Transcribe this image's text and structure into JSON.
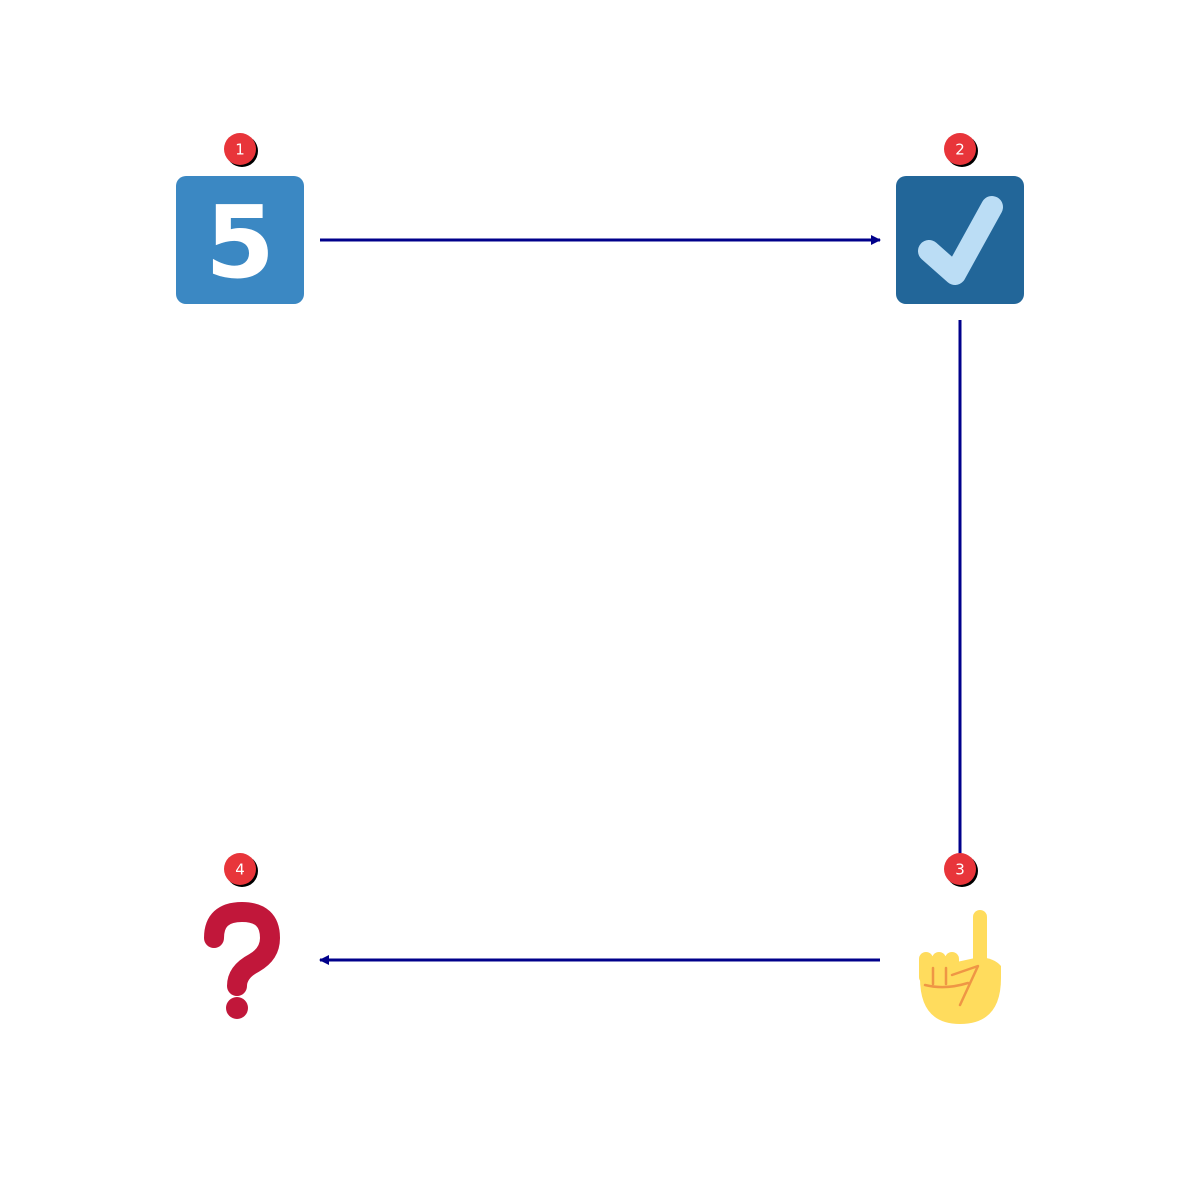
{
  "diagram": {
    "colors": {
      "connector": "#00008b",
      "badge_fill": "#e8353a",
      "badge_shadow": "#000000",
      "badge_text": "#ffffff",
      "tile_five": "#3b88c3",
      "tile_check": "#226699",
      "check_mark": "#bbddf5",
      "question_mark": "#c1173a",
      "hand_skin": "#ffdc5d",
      "hand_line": "#ef9645"
    },
    "nodes": [
      {
        "id": "node-1",
        "badge": "1",
        "icon": "keycap-five-icon",
        "glyph": "5"
      },
      {
        "id": "node-2",
        "badge": "2",
        "icon": "check-box-icon"
      },
      {
        "id": "node-3",
        "badge": "3",
        "icon": "index-pointing-up-icon"
      },
      {
        "id": "node-4",
        "badge": "4",
        "icon": "red-question-mark-icon"
      }
    ],
    "edges": [
      {
        "from": "1",
        "to": "2",
        "arrow": "end"
      },
      {
        "from": "2",
        "to": "3",
        "arrow": "none"
      },
      {
        "from": "3",
        "to": "4",
        "arrow": "end"
      }
    ]
  }
}
